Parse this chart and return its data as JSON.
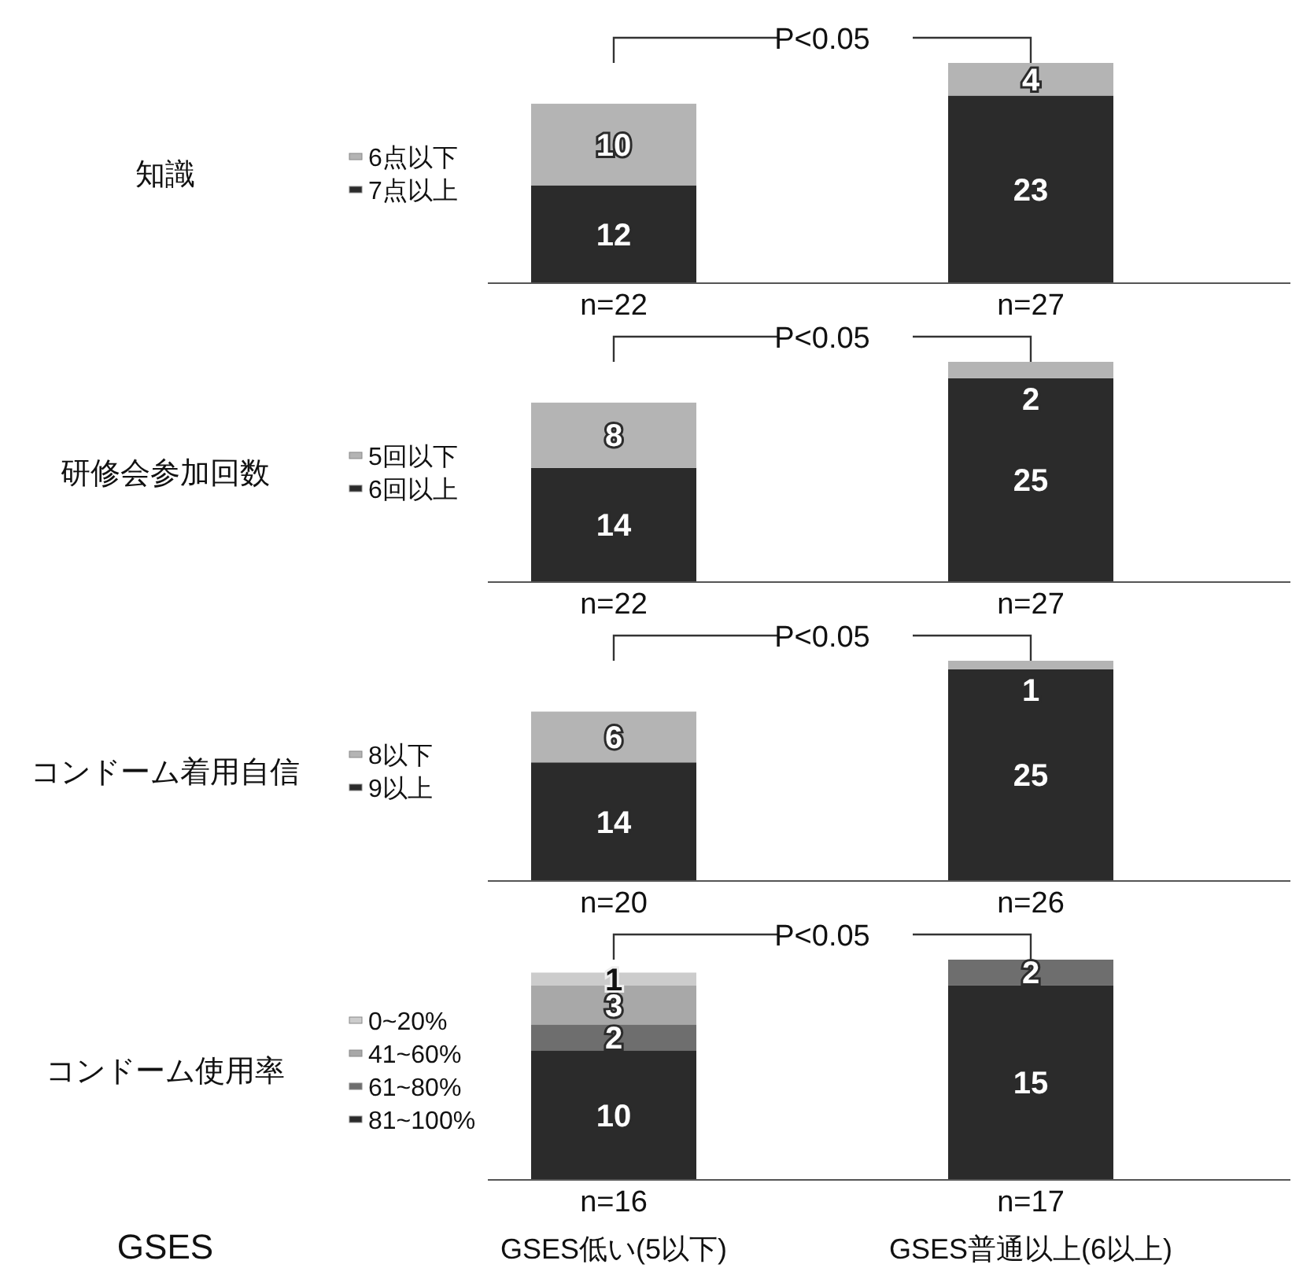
{
  "chart_data": [
    {
      "type": "bar",
      "ylabel": "知識",
      "categories": [
        "n=22",
        "n=27"
      ],
      "stacked": true,
      "data_labels": true,
      "legend": "left",
      "annotations": [
        "P<0.05"
      ],
      "series": [
        {
          "name": "7点以上",
          "color": "#2b2b2b",
          "values": [
            12,
            23
          ]
        },
        {
          "name": "6点以下",
          "color": "#b4b4b4",
          "values": [
            10,
            4
          ]
        }
      ]
    },
    {
      "type": "bar",
      "ylabel": "研修会参加回数",
      "categories": [
        "n=22",
        "n=27"
      ],
      "stacked": true,
      "data_labels": true,
      "legend": "left",
      "annotations": [
        "P<0.05"
      ],
      "series": [
        {
          "name": "6回以上",
          "color": "#2b2b2b",
          "values": [
            14,
            25
          ]
        },
        {
          "name": "5回以下",
          "color": "#b4b4b4",
          "values": [
            8,
            2
          ]
        }
      ]
    },
    {
      "type": "bar",
      "ylabel": "コンドーム着用自信",
      "categories": [
        "n=20",
        "n=26"
      ],
      "stacked": true,
      "data_labels": true,
      "legend": "left",
      "annotations": [
        "P<0.05"
      ],
      "series": [
        {
          "name": "9以上",
          "color": "#2b2b2b",
          "values": [
            14,
            25
          ]
        },
        {
          "name": "8以下",
          "color": "#b4b4b4",
          "values": [
            6,
            1
          ]
        }
      ]
    },
    {
      "type": "bar",
      "ylabel": "コンドーム使用率",
      "categories": [
        "n=16",
        "n=17"
      ],
      "stacked": true,
      "data_labels": true,
      "legend": "left",
      "annotations": [
        "P<0.05",
        "GSES",
        "GSES低い(5以下)",
        "GSES普通以上(6以上)"
      ],
      "series": [
        {
          "name": "81~100%",
          "color": "#2b2b2b",
          "values": [
            10,
            15
          ]
        },
        {
          "name": "61~80%",
          "color": "#6e6e6e",
          "values": [
            2,
            2
          ]
        },
        {
          "name": "41~60%",
          "color": "#a8a8a8",
          "values": [
            3,
            null
          ]
        },
        {
          "name": "0~20%",
          "color": "#cccccc",
          "values": [
            1,
            null
          ]
        }
      ]
    }
  ]
}
